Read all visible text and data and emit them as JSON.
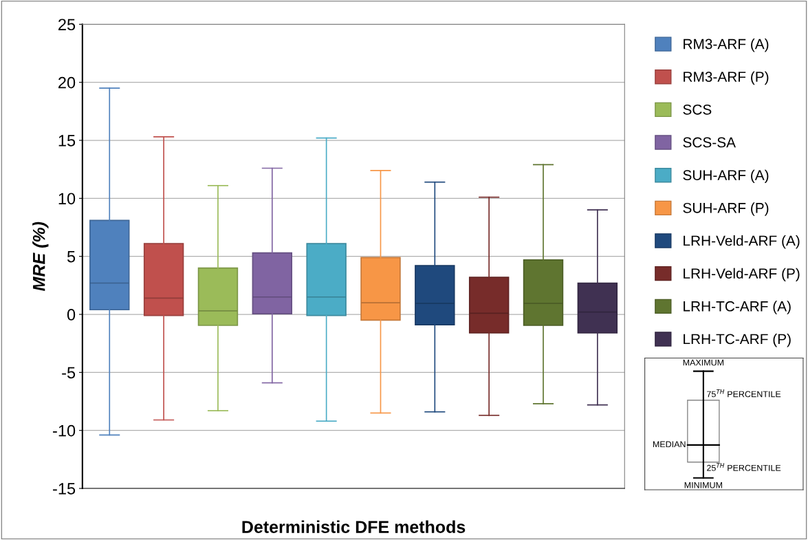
{
  "chart_data": {
    "type": "box",
    "xlabel": "Deterministic DFE methods",
    "ylabel": "MRE (%)",
    "categories": [
      null,
      null,
      null,
      null,
      null,
      null,
      null,
      null,
      null,
      null
    ],
    "ylim": [
      -15,
      25
    ],
    "yticks": [
      -15,
      -10,
      -5,
      0,
      5,
      10,
      15,
      20,
      25
    ],
    "grid": "y",
    "legend": "right",
    "series": [
      {
        "name": "RM3-ARF (A)",
        "color": "#4f81bd",
        "boxes": [
          {
            "low": -10.4,
            "q1": 0.4,
            "median": 2.7,
            "q3": 8.1,
            "high": 19.5
          },
          null,
          null,
          null,
          null,
          null,
          null,
          null,
          null,
          null
        ]
      },
      {
        "name": "RM3-ARF (P)",
        "color": "#c0504d",
        "boxes": [
          null,
          {
            "low": -9.1,
            "q1": -0.1,
            "median": 1.4,
            "q3": 6.1,
            "high": 15.3
          },
          null,
          null,
          null,
          null,
          null,
          null,
          null,
          null
        ]
      },
      {
        "name": "SCS",
        "color": "#9bbb59",
        "boxes": [
          null,
          null,
          {
            "low": -8.3,
            "q1": -0.95,
            "median": 0.3,
            "q3": 4.0,
            "high": 11.1
          },
          null,
          null,
          null,
          null,
          null,
          null,
          null
        ]
      },
      {
        "name": "SCS-SA",
        "color": "#8064a2",
        "boxes": [
          null,
          null,
          null,
          {
            "low": -5.9,
            "q1": 0.05,
            "median": 1.5,
            "q3": 5.3,
            "high": 12.6
          },
          null,
          null,
          null,
          null,
          null,
          null
        ]
      },
      {
        "name": "SUH-ARF (A)",
        "color": "#4bacc6",
        "boxes": [
          null,
          null,
          null,
          null,
          {
            "low": -9.2,
            "q1": -0.1,
            "median": 1.5,
            "q3": 6.1,
            "high": 15.2
          },
          null,
          null,
          null,
          null,
          null
        ]
      },
      {
        "name": "SUH-ARF (P)",
        "color": "#f79646",
        "boxes": [
          null,
          null,
          null,
          null,
          null,
          {
            "low": -8.5,
            "q1": -0.5,
            "median": 1.0,
            "q3": 4.9,
            "high": 12.4
          },
          null,
          null,
          null,
          null
        ]
      },
      {
        "name": "LRH-Veld-ARF (A)",
        "color": "#1f497d",
        "boxes": [
          null,
          null,
          null,
          null,
          null,
          null,
          {
            "low": -8.4,
            "q1": -0.9,
            "median": 0.95,
            "q3": 4.2,
            "high": 11.4
          },
          null,
          null,
          null
        ]
      },
      {
        "name": "LRH-Veld-ARF (P)",
        "color": "#772c2a",
        "boxes": [
          null,
          null,
          null,
          null,
          null,
          null,
          null,
          {
            "low": -8.7,
            "q1": -1.6,
            "median": 0.1,
            "q3": 3.2,
            "high": 10.1
          },
          null,
          null
        ]
      },
      {
        "name": "LRH-TC-ARF (A)",
        "color": "#5f7530",
        "boxes": [
          null,
          null,
          null,
          null,
          null,
          null,
          null,
          null,
          {
            "low": -7.7,
            "q1": -0.95,
            "median": 0.95,
            "q3": 4.7,
            "high": 12.9
          },
          null
        ]
      },
      {
        "name": "LRH-TC-ARF (P)",
        "color": "#403152",
        "boxes": [
          null,
          null,
          null,
          null,
          null,
          null,
          null,
          null,
          null,
          {
            "low": -7.8,
            "q1": -1.6,
            "median": 0.2,
            "q3": 2.7,
            "high": 9.0
          }
        ]
      }
    ],
    "annotations": [
      "MAXIMUM",
      "75$^{TH}$ PERCENTILE",
      "MEDIAN",
      "25$^{TH}$ PERCENTILE",
      "MINIMUM"
    ]
  }
}
